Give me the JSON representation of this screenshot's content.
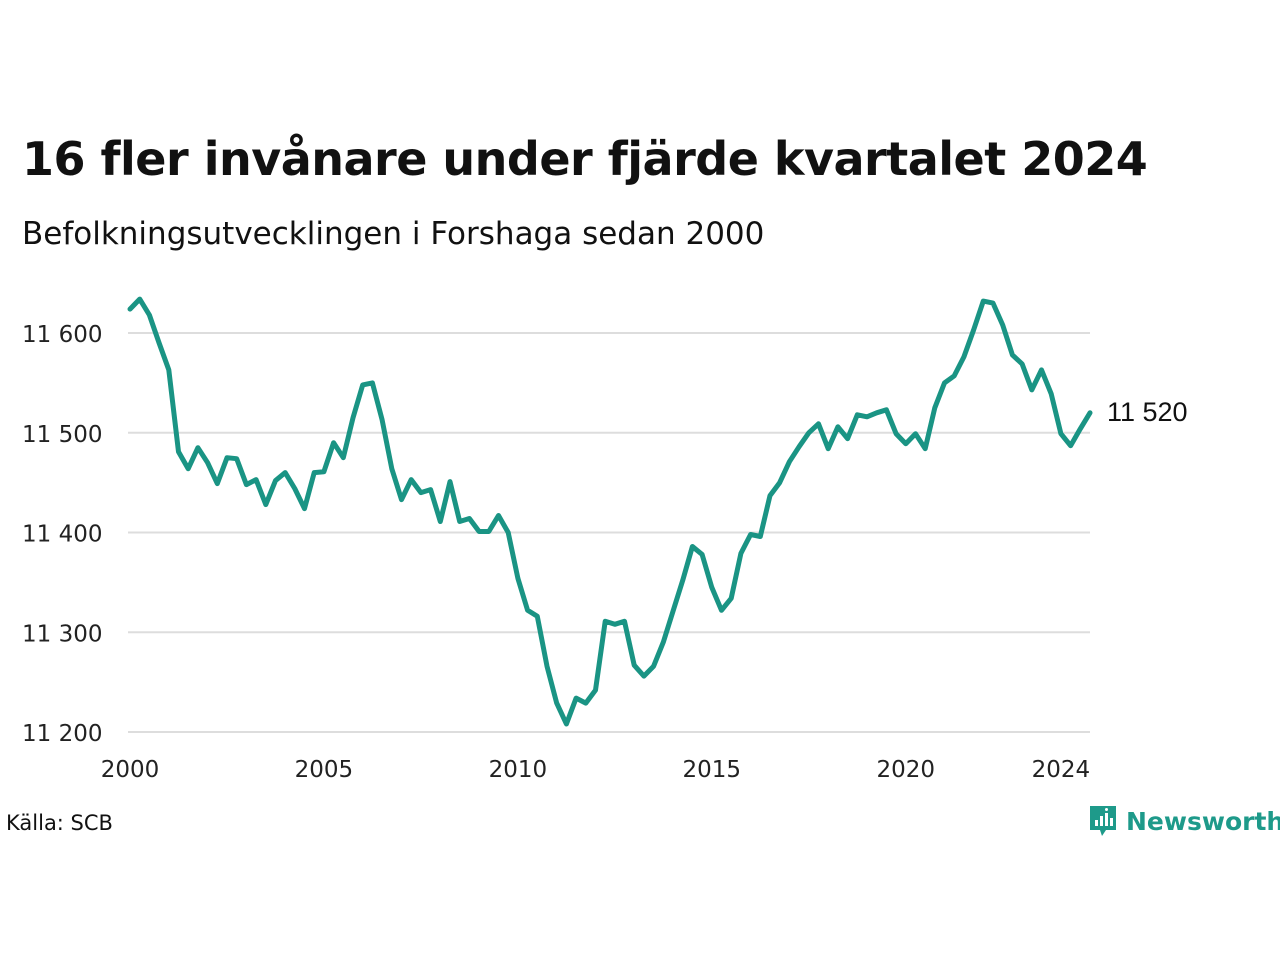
{
  "title": "16 fler invånare under fjärde kvartalet 2024",
  "subtitle": "Befolkningsutvecklingen i Forshaga sedan 2000",
  "source": "Källa: SCB",
  "brand": "Newsworthy",
  "last_label": "11 520",
  "colors": {
    "line": "#1a9484",
    "grid": "#dddddd",
    "brand": "#1e9a8a"
  },
  "chart_data": {
    "type": "line",
    "title": "16 fler invånare under fjärde kvartalet 2024",
    "subtitle": "Befolkningsutvecklingen i Forshaga sedan 2000",
    "xlabel": "",
    "ylabel": "",
    "xlim": [
      2000.0,
      2024.75
    ],
    "ylim": [
      11200,
      11650
    ],
    "x_ticks": [
      2000,
      2005,
      2010,
      2015,
      2020,
      2024
    ],
    "x_tick_labels": [
      "2000",
      "2005",
      "2010",
      "2015",
      "2020",
      "2024"
    ],
    "y_ticks": [
      11200,
      11300,
      11400,
      11500,
      11600
    ],
    "y_tick_labels": [
      "11 200",
      "11 300",
      "11 400",
      "11 500",
      "11 600"
    ],
    "grid": true,
    "legend": "none",
    "series": [
      {
        "name": "",
        "start": "2000Q1",
        "frequency": "quarterly",
        "values": [
          11624,
          11634,
          11618,
          11590,
          11563,
          11481,
          11464,
          11485,
          11470,
          11449,
          11475,
          11474,
          11448,
          11453,
          11428,
          11452,
          11460,
          11444,
          11424,
          11460,
          11461,
          11490,
          11475,
          11515,
          11548,
          11550,
          11513,
          11464,
          11433,
          11453,
          11440,
          11443,
          11411,
          11451,
          11411,
          11414,
          11401,
          11401,
          11417,
          11400,
          11354,
          11322,
          11316,
          11266,
          11229,
          11208,
          11234,
          11229,
          11242,
          11311,
          11308,
          11311,
          11267,
          11256,
          11266,
          11290,
          11321,
          11352,
          11386,
          11378,
          11345,
          11322,
          11334,
          11379,
          11398,
          11396,
          11437,
          11450,
          11471,
          11486,
          11500,
          11509,
          11484,
          11506,
          11494,
          11518,
          11516,
          11520,
          11523,
          11499,
          11489,
          11499,
          11484,
          11525,
          11550,
          11557,
          11576,
          11603,
          11632,
          11630,
          11608,
          11578,
          11569,
          11543,
          11563,
          11539,
          11499,
          11487,
          11504,
          11520
        ]
      }
    ],
    "annotations": [
      {
        "text": "11 520",
        "x": "2024Q4",
        "y": 11520
      }
    ]
  }
}
